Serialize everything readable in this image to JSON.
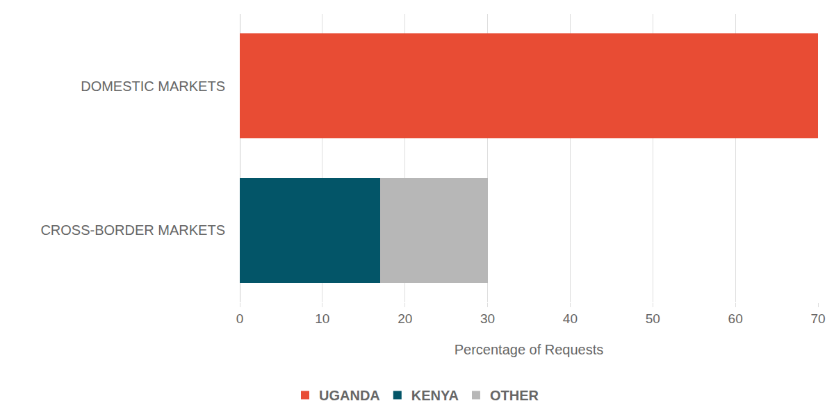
{
  "chart_data": {
    "type": "bar",
    "orientation": "horizontal",
    "stacked": true,
    "categories": [
      "DOMESTIC MARKETS",
      "CROSS-BORDER MARKETS"
    ],
    "series": [
      {
        "name": "UGANDA",
        "color": "#e84c34",
        "values": [
          70,
          null
        ]
      },
      {
        "name": "KENYA",
        "color": "#035568",
        "values": [
          null,
          17
        ]
      },
      {
        "name": "OTHER",
        "color": "#b7b7b7",
        "values": [
          null,
          13
        ]
      }
    ],
    "x_label": "Percentage of Requests",
    "xlim": [
      0,
      70
    ],
    "xticks": [
      0,
      10,
      20,
      30,
      40,
      50,
      60,
      70
    ],
    "grid": true,
    "legend": "bottom"
  }
}
